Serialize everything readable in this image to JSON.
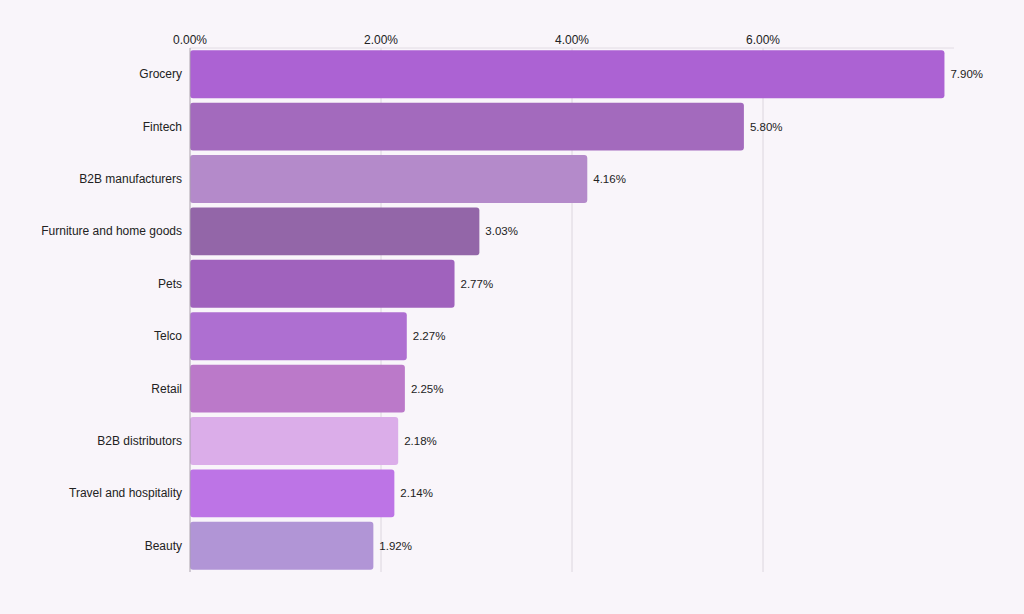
{
  "chart_data": {
    "type": "bar",
    "orientation": "horizontal",
    "categories": [
      "Grocery",
      "Fintech",
      "B2B manufacturers",
      "Furniture and home goods",
      "Pets",
      "Telco",
      "Retail",
      "B2B distributors",
      "Travel and hospitality",
      "Beauty"
    ],
    "values": [
      7.9,
      5.8,
      4.16,
      3.03,
      2.77,
      2.27,
      2.25,
      2.18,
      2.14,
      1.92
    ],
    "value_labels": [
      "7.90%",
      "5.80%",
      "4.16%",
      "3.03%",
      "2.77%",
      "2.27%",
      "2.25%",
      "2.18%",
      "2.14%",
      "1.92%"
    ],
    "colors": [
      "#ac62d3",
      "#a36abd",
      "#b48aca",
      "#9366a8",
      "#a062bd",
      "#ae6fd1",
      "#bb79c9",
      "#dbade9",
      "#bd74e6",
      "#b195d6"
    ],
    "xlim": [
      0,
      8
    ],
    "xticks": [
      {
        "value": 0,
        "label": "0.00%"
      },
      {
        "value": 2,
        "label": "2.00%"
      },
      {
        "value": 4,
        "label": "4.00%"
      },
      {
        "value": 6,
        "label": "6.00%"
      }
    ],
    "grid": true,
    "data_labels": true
  }
}
